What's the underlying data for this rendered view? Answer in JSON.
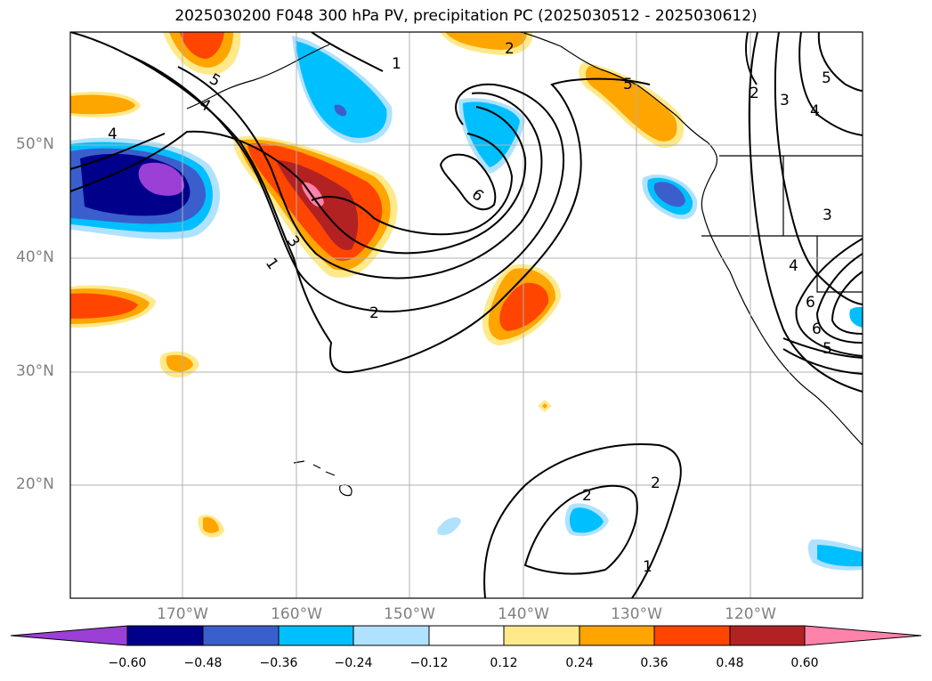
{
  "title": "2025030200 F048 300 hPa PV, precipitation PC (2025030512 - 2025030612)",
  "lat_labels": [
    "50°N",
    "40°N",
    "30°N",
    "20°N"
  ],
  "lon_labels": [
    "170°W",
    "160°W",
    "150°W",
    "140°W",
    "130°W",
    "120°W"
  ],
  "colorbar": {
    "ticks": [
      "−0.60",
      "−0.48",
      "−0.36",
      "−0.24",
      "−0.12",
      "0.12",
      "0.24",
      "0.36",
      "0.48",
      "0.60"
    ],
    "colors": [
      "#9b3fd6",
      "#00008b",
      "#3a5fcd",
      "#00bfff",
      "#b0e2ff",
      "#ffffff",
      "#ffe98a",
      "#ffa500",
      "#ff4500",
      "#b22222",
      "#ff82ab"
    ]
  },
  "contour_labels": [
    "1",
    "2",
    "3",
    "4",
    "5",
    "6",
    "1",
    "2",
    "4",
    "5",
    "2",
    "6",
    "2",
    "3",
    "4",
    "5",
    "3",
    "4",
    "6",
    "5",
    "1",
    "2"
  ],
  "colors": {
    "land_lines": "#000000",
    "grid": "#b0b0b0",
    "tick_text": "#808080"
  }
}
